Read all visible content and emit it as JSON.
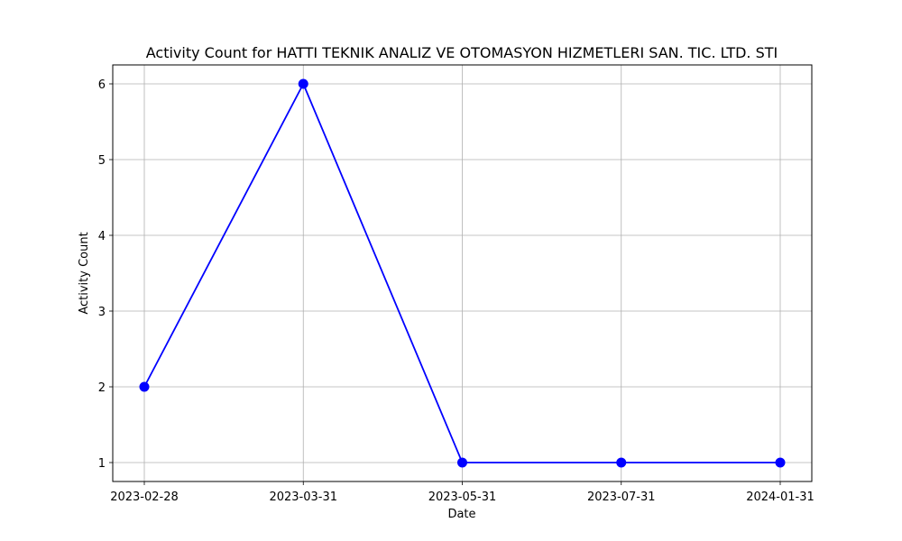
{
  "chart_data": {
    "type": "line",
    "title": "Activity Count for HATTI TEKNIK ANALIZ VE OTOMASYON HIZMETLERI SAN. TIC. LTD. STI",
    "xlabel": "Date",
    "ylabel": "Activity Count",
    "categories": [
      "2023-02-28",
      "2023-03-31",
      "2023-05-31",
      "2023-07-31",
      "2024-01-31"
    ],
    "series": [
      {
        "values": [
          2,
          6,
          1,
          1,
          1
        ],
        "color": "#0000ff",
        "marker": "circle"
      }
    ],
    "yticks": [
      1,
      2,
      3,
      4,
      5,
      6
    ],
    "ylim": [
      0.75,
      6.25
    ],
    "grid": true,
    "legend": "none"
  }
}
